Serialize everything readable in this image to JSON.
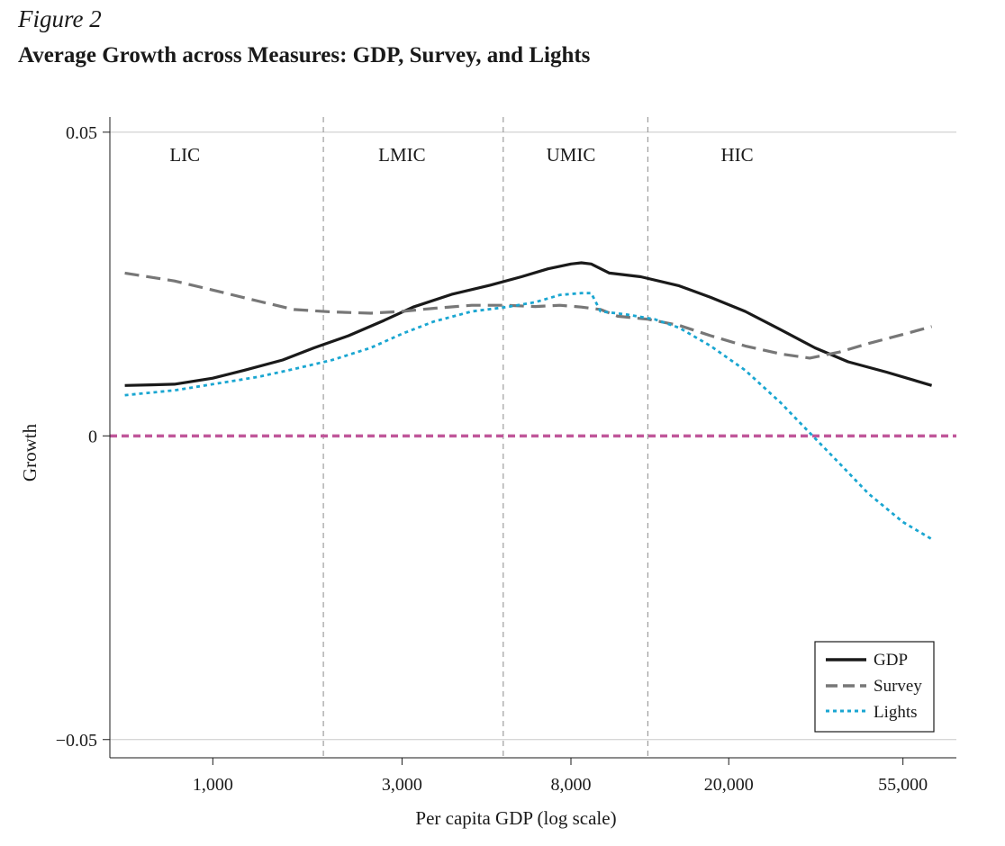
{
  "figure": {
    "label": "Figure 2",
    "title": "Average Growth across Measures: GDP, Survey, and Lights"
  },
  "chart_data": {
    "type": "line",
    "xlabel": "Per capita GDP (log scale)",
    "ylabel": "Growth",
    "x_scale": "log",
    "xlim": [
      550,
      75000
    ],
    "ylim": [
      -0.053,
      0.0525
    ],
    "x_ticks": [
      1000,
      3000,
      8000,
      20000,
      55000
    ],
    "x_tick_labels": [
      "1,000",
      "3,000",
      "8,000",
      "20,000",
      "55,000"
    ],
    "y_ticks": [
      -0.05,
      0,
      0.05
    ],
    "y_tick_labels": [
      "−0.05",
      "0",
      "0.05"
    ],
    "horizontal_grid": true,
    "reference_line": {
      "y": 0,
      "color": "#c0579a",
      "style": "dashed"
    },
    "income_groups": [
      {
        "label": "LIC",
        "x": 850
      },
      {
        "label": "LMIC",
        "x": 3000
      },
      {
        "label": "UMIC",
        "x": 8000
      },
      {
        "label": "HIC",
        "x": 21000
      }
    ],
    "group_boundaries": [
      1900,
      5400,
      12500
    ],
    "legend_position": "bottom-right",
    "series": [
      {
        "name": "GDP",
        "color": "#1a1a1a",
        "style": "solid",
        "x": [
          600,
          700,
          800,
          1000,
          1200,
          1500,
          1800,
          2200,
          2700,
          3200,
          4000,
          5000,
          6000,
          7000,
          8000,
          8500,
          9000,
          10000,
          12000,
          15000,
          18000,
          22000,
          27000,
          33000,
          40000,
          50000,
          65000
        ],
        "y": [
          0.0083,
          0.0084,
          0.0085,
          0.0095,
          0.0108,
          0.0125,
          0.0145,
          0.0165,
          0.019,
          0.0212,
          0.0233,
          0.0248,
          0.0262,
          0.0275,
          0.0283,
          0.0285,
          0.0283,
          0.0268,
          0.0262,
          0.0247,
          0.0228,
          0.0205,
          0.0175,
          0.0145,
          0.0122,
          0.0105,
          0.0083
        ]
      },
      {
        "name": "Survey",
        "color": "#777777",
        "style": "dashed",
        "x": [
          600,
          800,
          1000,
          1300,
          1600,
          2000,
          2500,
          3000,
          3600,
          4500,
          5500,
          6500,
          7500,
          8500,
          9500,
          10500,
          12500,
          15000,
          18000,
          22000,
          27000,
          32000,
          38000,
          45000,
          55000,
          65000
        ],
        "y": [
          0.0268,
          0.0255,
          0.024,
          0.0222,
          0.0208,
          0.0204,
          0.0202,
          0.0205,
          0.021,
          0.0215,
          0.0215,
          0.0213,
          0.0215,
          0.0212,
          0.0208,
          0.0197,
          0.0192,
          0.0182,
          0.0165,
          0.0148,
          0.0135,
          0.0128,
          0.0138,
          0.0152,
          0.0167,
          0.018
        ]
      },
      {
        "name": "Lights",
        "color": "#1aa6d1",
        "style": "dotted",
        "x": [
          600,
          800,
          1000,
          1300,
          1600,
          2000,
          2500,
          3000,
          3600,
          4500,
          5500,
          6500,
          7500,
          8500,
          9000,
          9500,
          11000,
          13000,
          15000,
          18000,
          22000,
          27000,
          32000,
          38000,
          45000,
          55000,
          65000
        ],
        "y": [
          0.0067,
          0.0075,
          0.0085,
          0.0097,
          0.011,
          0.0125,
          0.0145,
          0.0168,
          0.0188,
          0.0205,
          0.0212,
          0.022,
          0.0232,
          0.0235,
          0.0235,
          0.0205,
          0.02,
          0.0192,
          0.0178,
          0.0148,
          0.0108,
          0.0055,
          0.0005,
          -0.0045,
          -0.0095,
          -0.0142,
          -0.017
        ]
      }
    ]
  }
}
